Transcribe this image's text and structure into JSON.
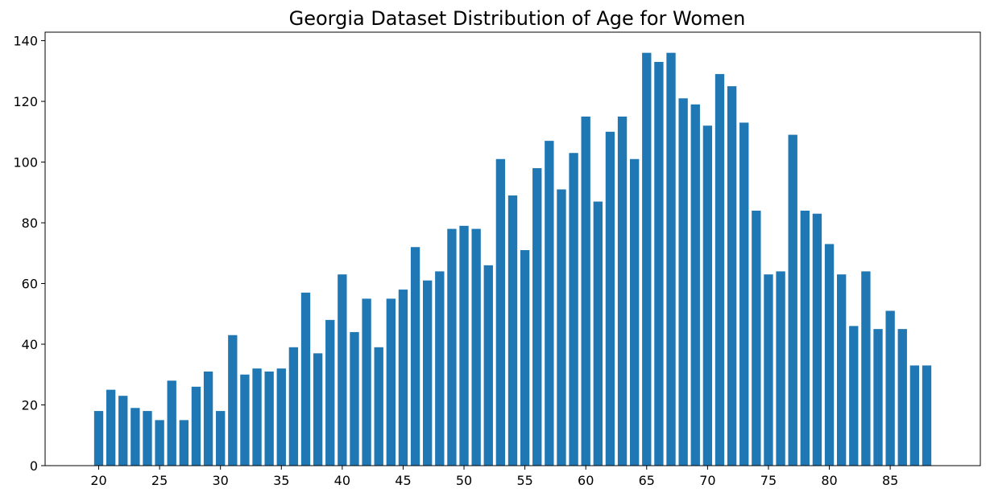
{
  "chart_data": {
    "type": "bar",
    "title": "Georgia Dataset Distribution of Age for Women",
    "xlabel": "",
    "ylabel": "",
    "x": [
      20,
      21,
      22,
      23,
      24,
      25,
      26,
      27,
      28,
      29,
      30,
      31,
      32,
      33,
      34,
      35,
      36,
      37,
      38,
      39,
      40,
      41,
      42,
      43,
      44,
      45,
      46,
      47,
      48,
      49,
      50,
      51,
      52,
      53,
      54,
      55,
      56,
      57,
      58,
      59,
      60,
      61,
      62,
      63,
      64,
      65,
      66,
      67,
      68,
      69,
      70,
      71,
      72,
      73,
      74,
      75,
      76,
      77,
      78,
      79,
      80,
      81,
      82,
      83,
      84,
      85,
      86,
      87,
      88
    ],
    "values": [
      18,
      25,
      23,
      19,
      18,
      15,
      28,
      15,
      26,
      31,
      18,
      43,
      30,
      32,
      31,
      32,
      39,
      57,
      37,
      48,
      63,
      44,
      55,
      39,
      55,
      58,
      72,
      61,
      64,
      78,
      79,
      78,
      66,
      101,
      89,
      71,
      98,
      107,
      91,
      103,
      115,
      87,
      110,
      115,
      101,
      136,
      133,
      136,
      121,
      119,
      112,
      129,
      125,
      113,
      84,
      63,
      64,
      109,
      84,
      83,
      73,
      63,
      46,
      64,
      45,
      51,
      45,
      33,
      33
    ],
    "xticks": [
      20,
      25,
      30,
      35,
      40,
      45,
      50,
      55,
      60,
      65,
      70,
      75,
      80,
      85
    ],
    "yticks": [
      0,
      20,
      40,
      60,
      80,
      100,
      120,
      140
    ],
    "xlim": [
      15.6,
      92.4
    ],
    "ylim": [
      0,
      142.8
    ],
    "bar_color": "#1f77b4",
    "grid": false,
    "legend": "none"
  }
}
